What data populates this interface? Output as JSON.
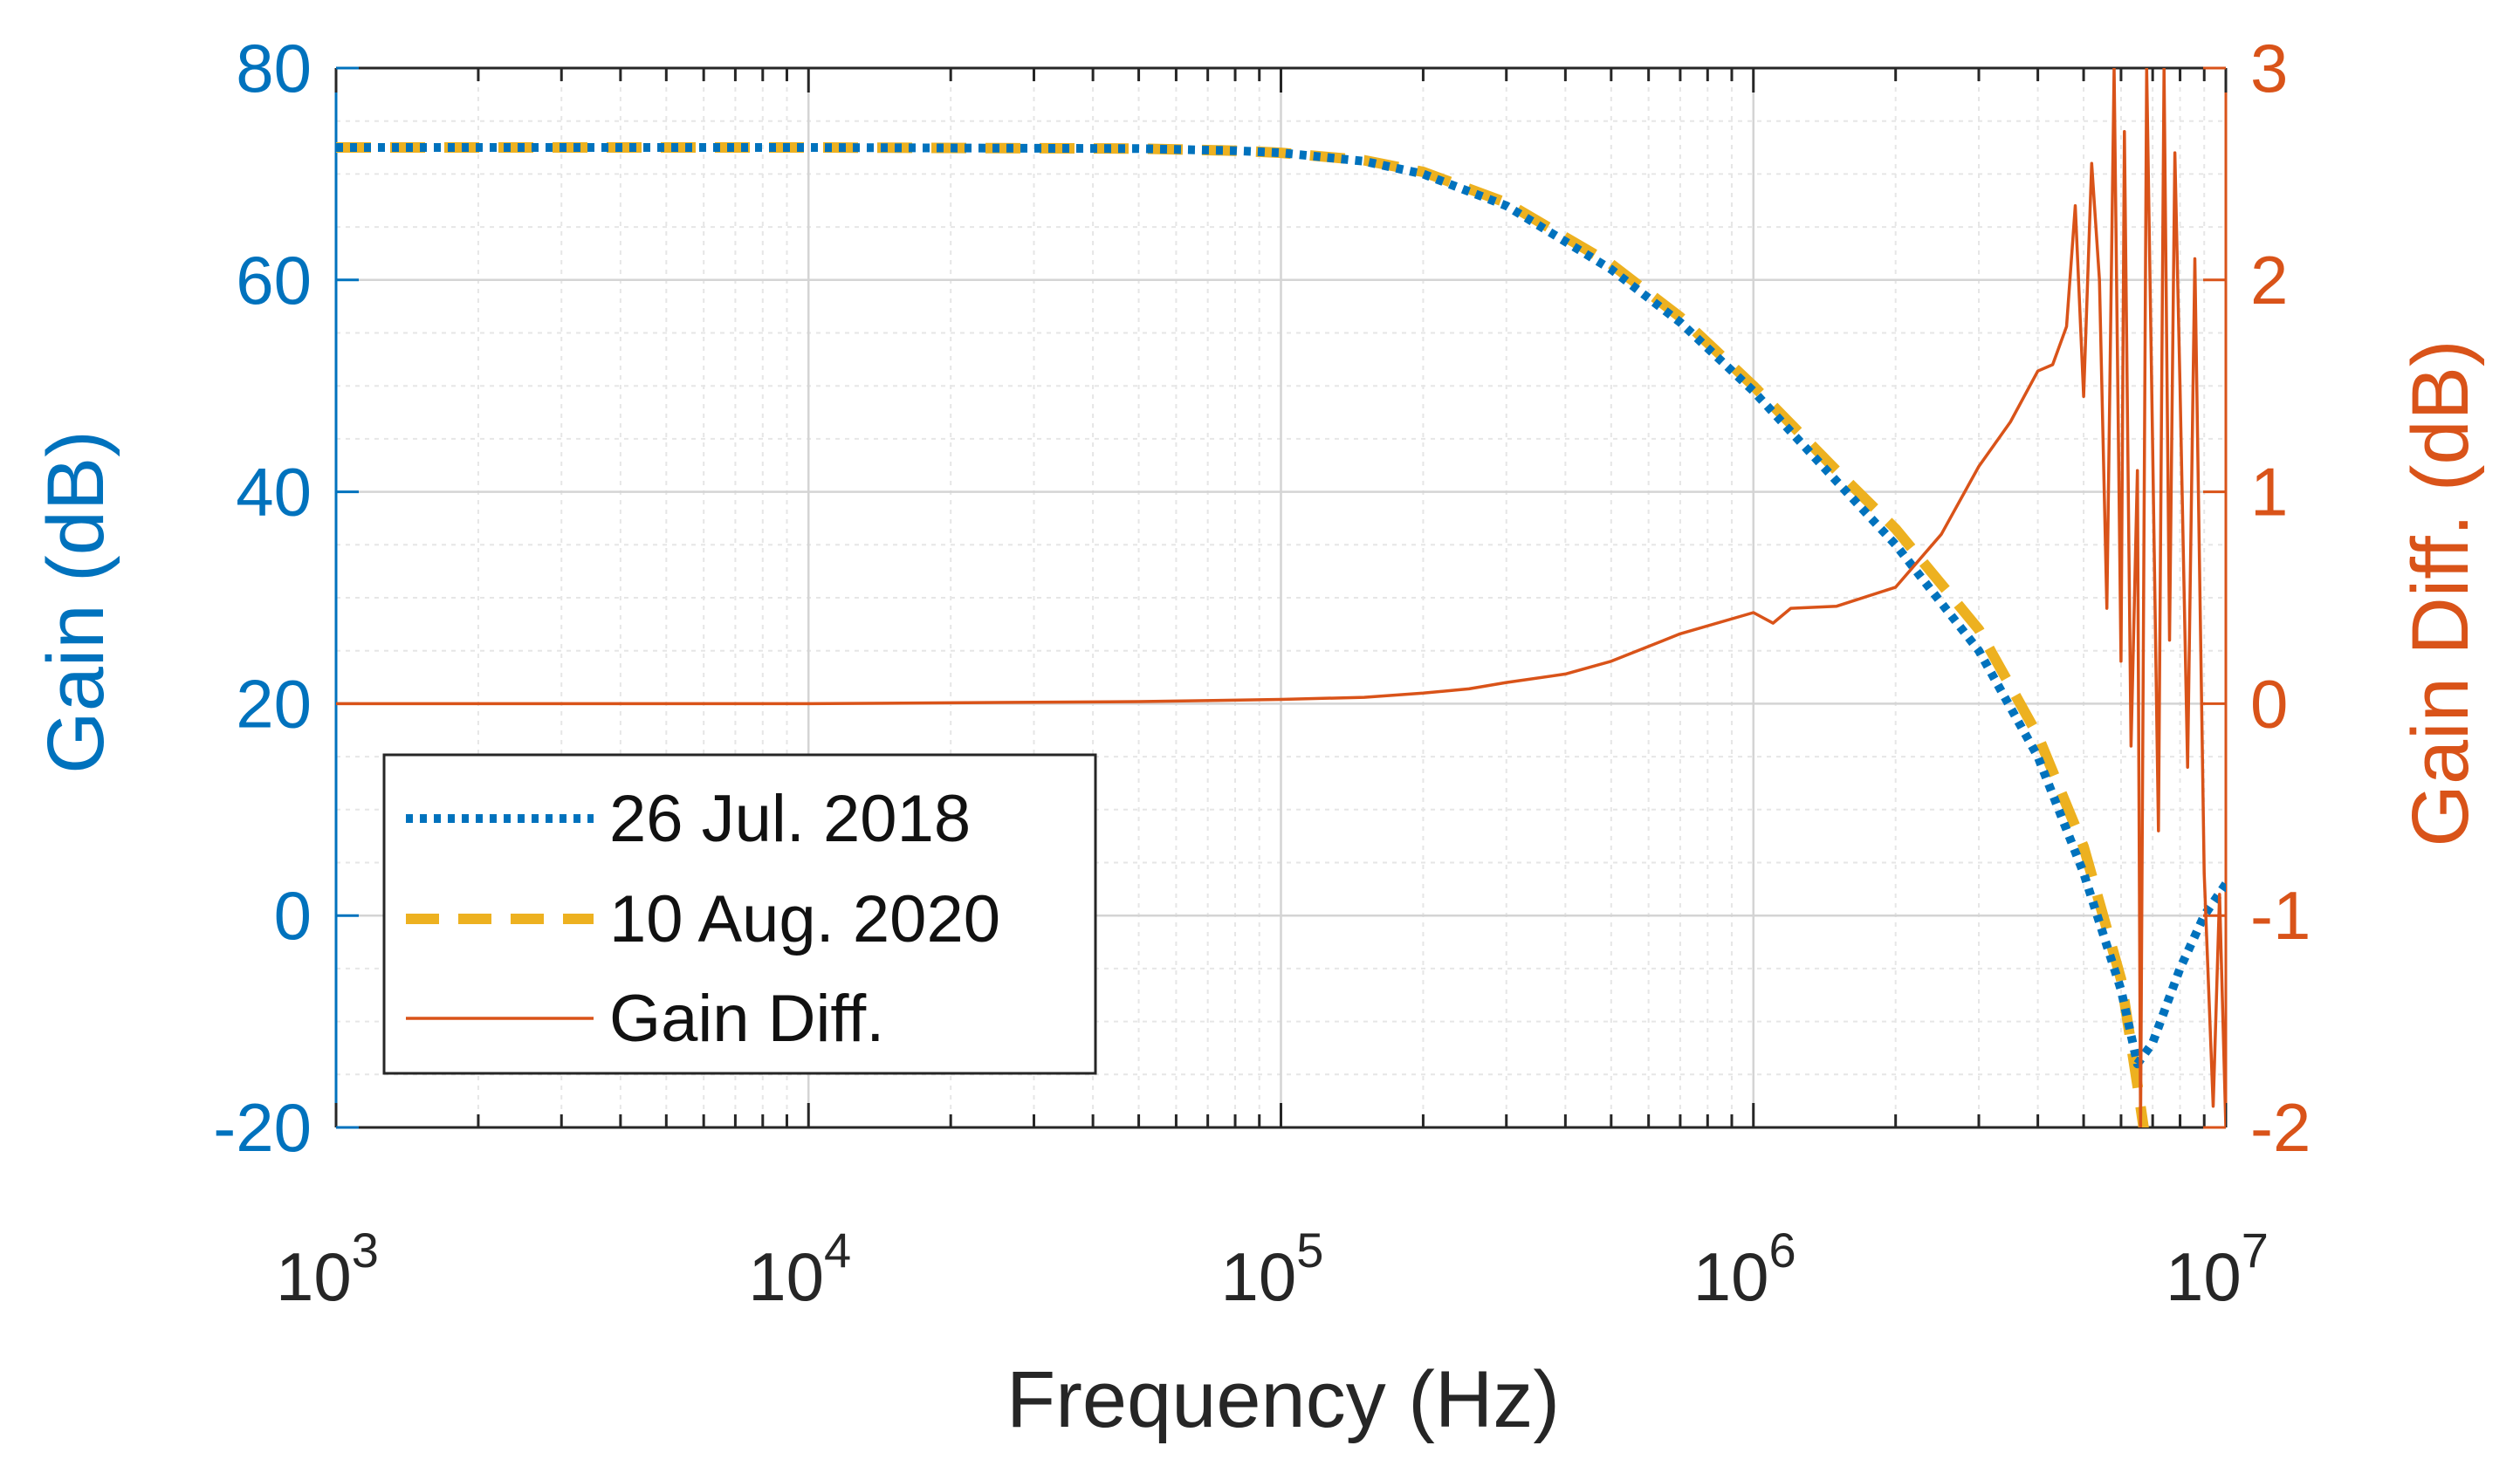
{
  "chart_data": {
    "type": "line",
    "title": "",
    "xlabel": "Frequency (Hz)",
    "ylabel_left": "Gain (dB)",
    "ylabel_right": "Gain Diff. (dB)",
    "xscale": "log",
    "xlim": [
      1000,
      10000000
    ],
    "ylim_left": [
      -20,
      80
    ],
    "ylim_right": [
      -2,
      3
    ],
    "x_ticks": [
      {
        "value": 1000,
        "base": "10",
        "exp": "3"
      },
      {
        "value": 10000,
        "base": "10",
        "exp": "4"
      },
      {
        "value": 100000,
        "base": "10",
        "exp": "5"
      },
      {
        "value": 1000000,
        "base": "10",
        "exp": "6"
      },
      {
        "value": 10000000,
        "base": "10",
        "exp": "7"
      }
    ],
    "y_ticks_left": [
      "-20",
      "0",
      "20",
      "40",
      "60",
      "80"
    ],
    "y_ticks_right": [
      "-2",
      "-1",
      "0",
      "1",
      "2",
      "3"
    ],
    "grid": true,
    "legend_position": "bottom-left",
    "series": [
      {
        "name": "26 Jul. 2018",
        "axis": "left",
        "style": "dotted",
        "color": "#0072BD",
        "x": [
          1000,
          10000,
          50000,
          80000,
          100000,
          150000,
          200000,
          300000,
          500000,
          700000,
          1000000,
          1500000,
          2000000,
          3000000,
          4000000,
          5000000,
          6000000,
          6500000,
          7000000,
          8000000,
          9000000,
          10000000
        ],
        "y": [
          72.5,
          72.5,
          72.4,
          72.2,
          72,
          71.2,
          70,
          67,
          61,
          56,
          49.5,
          41,
          35,
          25,
          15,
          4,
          -7,
          -14,
          -12,
          -5,
          0,
          3
        ]
      },
      {
        "name": "10 Aug. 2020",
        "axis": "left",
        "style": "dashed",
        "color": "#EDB120",
        "x": [
          1000,
          10000,
          50000,
          80000,
          100000,
          150000,
          200000,
          300000,
          500000,
          700000,
          1000000,
          1500000,
          2000000,
          3000000,
          4000000,
          5000000,
          6000000,
          6500000,
          6800000
        ],
        "y": [
          72.5,
          72.5,
          72.4,
          72.2,
          72,
          71.3,
          70.2,
          67.3,
          61.5,
          56.5,
          50,
          42,
          36.5,
          27,
          17,
          6.5,
          -6,
          -16,
          -22
        ]
      },
      {
        "name": "Gain Diff.",
        "axis": "right",
        "style": "solid",
        "color": "#D95319",
        "x": [
          1000,
          10000,
          50000,
          100000,
          150000,
          200000,
          250000,
          300000,
          400000,
          500000,
          700000,
          1000000,
          1100000,
          1200000,
          1500000,
          2000000,
          2500000,
          3000000,
          3500000,
          4000000,
          4300000,
          4600000,
          4800000,
          5000000,
          5200000,
          5400000,
          5600000,
          5800000,
          6000000,
          6100000,
          6300000,
          6500000,
          6600000,
          6800000,
          7000000,
          7200000,
          7400000,
          7600000,
          7800000,
          8000000,
          8300000,
          8600000,
          9000000,
          9400000,
          9700000,
          10000000
        ],
        "y": [
          0,
          0,
          0.01,
          0.02,
          0.03,
          0.05,
          0.07,
          0.1,
          0.14,
          0.2,
          0.33,
          0.43,
          0.38,
          0.45,
          0.46,
          0.55,
          0.8,
          1.12,
          1.33,
          1.57,
          1.6,
          1.78,
          2.35,
          1.45,
          2.55,
          2.0,
          0.45,
          3.0,
          0.2,
          2.7,
          -0.2,
          1.1,
          -2.0,
          3.0,
          1.2,
          -0.6,
          3.0,
          0.3,
          2.6,
          1.5,
          -0.3,
          2.1,
          -0.8,
          -1.9,
          -0.9,
          -2.0
        ]
      }
    ]
  },
  "legend": {
    "items": [
      {
        "label": "26 Jul. 2018"
      },
      {
        "label": "10 Aug. 2020"
      },
      {
        "label": "Gain Diff."
      }
    ]
  },
  "colors": {
    "left_axis": "#0072BD",
    "right_axis": "#D95319",
    "grid": "#d9d9d9",
    "frame": "#262626"
  }
}
